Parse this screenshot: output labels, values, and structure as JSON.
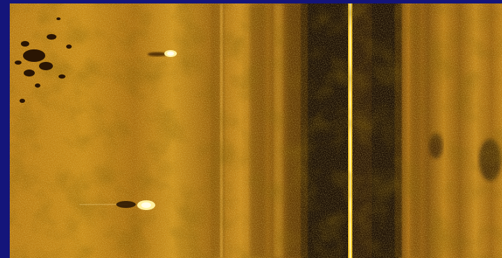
{
  "image": {
    "subject": "side-scan-sonar-seabed",
    "colors": {
      "border": "#14157a",
      "seabed_light": "#d89a1c",
      "seabed_mid": "#b0730f",
      "seabed_dark": "#7a4a06",
      "water_column": "#1a0d02",
      "nadir_line": "#ffd030",
      "target_highlight": "#fff1a0",
      "shadow": "#3a1e04"
    }
  }
}
